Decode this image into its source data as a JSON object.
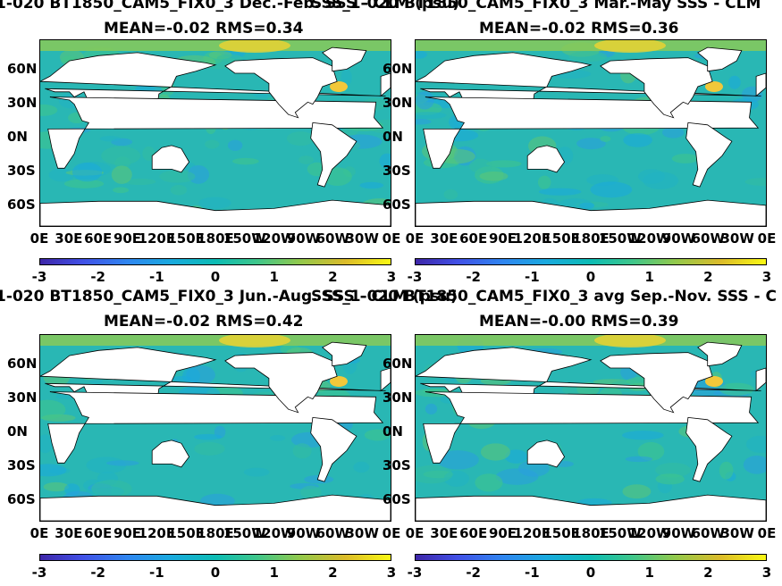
{
  "panels": [
    {
      "title_main": "SSS_1-020 BT1850",
      "title_parts": [
        [
          "SSS_1-020 BT1850",
          ""
        ],
        [
          "C",
          ""
        ],
        [
          "AM5",
          ""
        ],
        [
          "F",
          ""
        ],
        [
          "IX0",
          ""
        ],
        [
          "3",
          ""
        ],
        [
          " Dec.-Feb. SSS - CLM (psu)",
          ""
        ]
      ],
      "title_text": "-1-020 BT1850_CAM5_FIX0_3  Dec.-Feb. SSS - CLM (psu)",
      "stats": "MEAN=-0.02   RMS=0.34"
    },
    {
      "title_text": "SSS_1-020 BT1850_CAM5_FIX0_3  Mar.-May SSS - CLM",
      "stats": "MEAN=-0.02   RMS=0.36"
    },
    {
      "title_text": "-1-020 BT1850_CAM5_FIX0_3  Jun.-Aug. SSS - CLM (psu)",
      "stats": "MEAN=-0.02   RMS=0.42"
    },
    {
      "title_text": "SSS_1-020 BT1850_CAM5_FIX0_3 avg Sep.-Nov. SSS - C",
      "stats": "MEAN=-0.00   RMS=0.39"
    }
  ],
  "chart_data": [
    {
      "type": "heatmap",
      "title": "Dec.-Feb. SSS - CLM (psu)",
      "stats": {
        "mean": -0.02,
        "rms": 0.34
      },
      "y_ticks": [
        "60N",
        "30N",
        "0N",
        "30S",
        "60S"
      ],
      "x_ticks": [
        "0E",
        "30E",
        "60E",
        "90E",
        "120E",
        "150E",
        "180E",
        "150W",
        "120W",
        "90W",
        "60W",
        "30W",
        "0E"
      ],
      "colorbar": {
        "min": -3,
        "max": 3,
        "ticks": [
          "-3",
          "-2",
          "-1",
          "0",
          "1",
          "2",
          "3"
        ]
      }
    },
    {
      "type": "heatmap",
      "title": "Mar.-May SSS - CLM",
      "stats": {
        "mean": -0.02,
        "rms": 0.36
      },
      "y_ticks": [
        "60N",
        "30N",
        "0N",
        "30S",
        "60S"
      ],
      "x_ticks": [
        "0E",
        "30E",
        "60E",
        "90E",
        "120E",
        "150E",
        "180E",
        "150W",
        "120W",
        "90W",
        "60W",
        "30W",
        "0E"
      ],
      "colorbar": {
        "min": -3,
        "max": 3,
        "ticks": [
          "-3",
          "-2",
          "-1",
          "0",
          "1",
          "2",
          "3"
        ]
      }
    },
    {
      "type": "heatmap",
      "title": "Jun.-Aug. SSS - CLM (psu)",
      "stats": {
        "mean": -0.02,
        "rms": 0.42
      },
      "y_ticks": [
        "60N",
        "30N",
        "0N",
        "30S",
        "60S"
      ],
      "x_ticks": [
        "0E",
        "30E",
        "60E",
        "90E",
        "120E",
        "150E",
        "180E",
        "150W",
        "120W",
        "90W",
        "60W",
        "30W",
        "0E"
      ],
      "colorbar": {
        "min": -3,
        "max": 3,
        "ticks": [
          "-3",
          "-2",
          "-1",
          "0",
          "1",
          "2",
          "3"
        ]
      }
    },
    {
      "type": "heatmap",
      "title": "avg Sep.-Nov. SSS - C",
      "stats": {
        "mean": -0.0,
        "rms": 0.39
      },
      "y_ticks": [
        "60N",
        "30N",
        "0N",
        "30S",
        "60S"
      ],
      "x_ticks": [
        "0E",
        "30E",
        "60E",
        "90E",
        "120E",
        "150E",
        "180E",
        "150W",
        "120W",
        "90W",
        "60W",
        "30W",
        "0E"
      ],
      "colorbar": {
        "min": -3,
        "max": 3,
        "ticks": [
          "-3",
          "-2",
          "-1",
          "0",
          "1",
          "2",
          "3"
        ]
      }
    }
  ]
}
